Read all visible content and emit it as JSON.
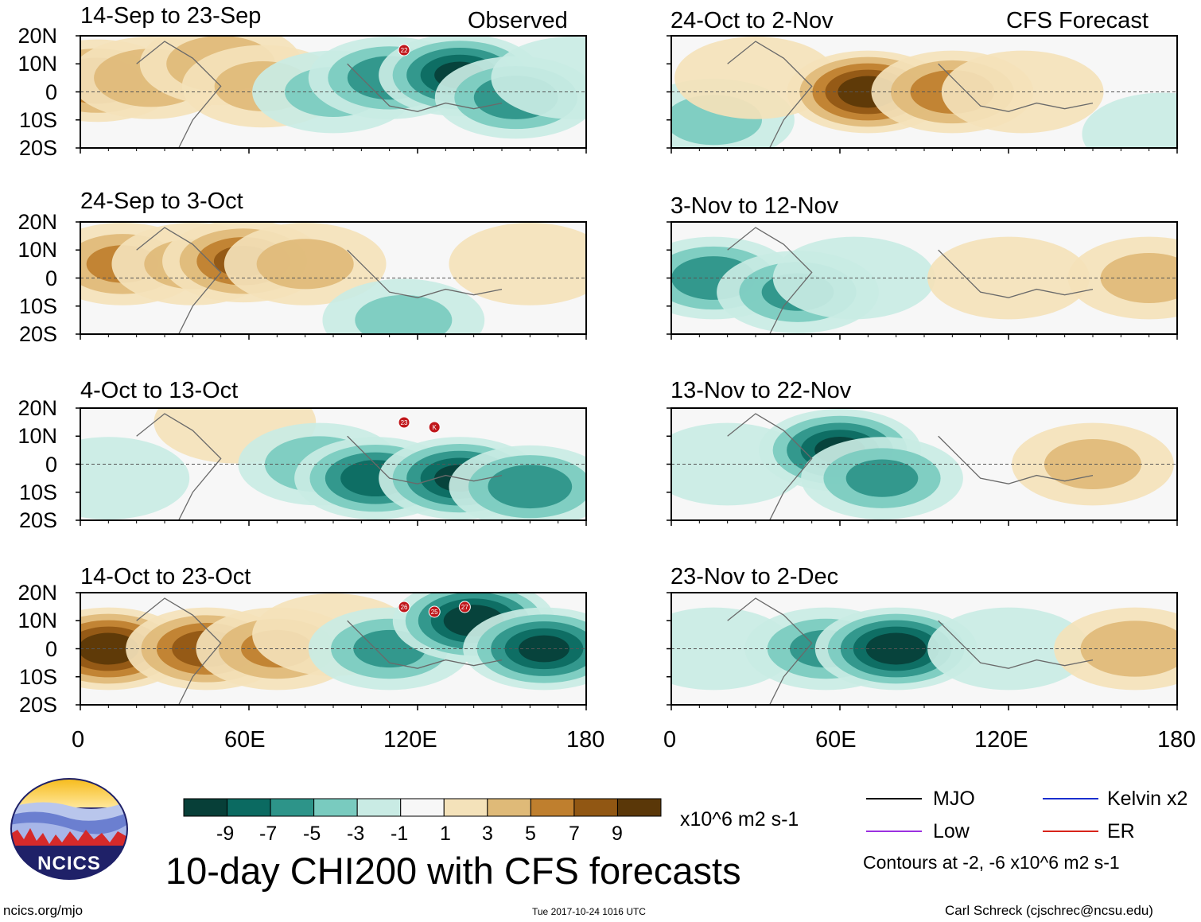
{
  "chart_data": {
    "type": "heatmap",
    "title": "10-day CHI200 with CFS forecasts",
    "units": "x10^6 m2 s-1",
    "x_ticks": [
      "0",
      "60E",
      "120E",
      "180"
    ],
    "y_ticks": [
      "20N",
      "10N",
      "0",
      "10S",
      "20S"
    ],
    "xlim": [
      0,
      180
    ],
    "ylim": [
      -20,
      20
    ],
    "headers": {
      "observed": "Observed",
      "forecast": "CFS Forecast"
    },
    "panels": [
      {
        "period": "14-Sep to 23-Sep",
        "kind": "observed",
        "anomalies": [
          {
            "lon": 6,
            "lat": 4,
            "value": 6.5
          },
          {
            "lon": 25,
            "lat": 5,
            "value": 4.5
          },
          {
            "lon": 50,
            "lat": 10,
            "value": 4
          },
          {
            "lon": 65,
            "lat": 2,
            "value": 3
          },
          {
            "lon": 90,
            "lat": 0,
            "value": -3
          },
          {
            "lon": 110,
            "lat": 5,
            "value": -6
          },
          {
            "lon": 135,
            "lat": 6,
            "value": -9
          },
          {
            "lon": 155,
            "lat": -2,
            "value": -6
          },
          {
            "lon": 175,
            "lat": 5,
            "value": -2
          }
        ],
        "storm_labels": [
          "22"
        ]
      },
      {
        "period": "24-Sep to 3-Oct",
        "kind": "observed",
        "anomalies": [
          {
            "lon": 15,
            "lat": 5,
            "value": 5
          },
          {
            "lon": 40,
            "lat": 5,
            "value": 3
          },
          {
            "lon": 58,
            "lat": 6,
            "value": 7
          },
          {
            "lon": 80,
            "lat": 5,
            "value": 3
          },
          {
            "lon": 115,
            "lat": -15,
            "value": -3
          },
          {
            "lon": 160,
            "lat": 5,
            "value": 2
          }
        ],
        "storm_labels": []
      },
      {
        "period": "4-Oct to 13-Oct",
        "kind": "observed",
        "anomalies": [
          {
            "lon": 10,
            "lat": -5,
            "value": -2
          },
          {
            "lon": 55,
            "lat": 15,
            "value": 2
          },
          {
            "lon": 85,
            "lat": 0,
            "value": -4
          },
          {
            "lon": 105,
            "lat": -5,
            "value": -8
          },
          {
            "lon": 135,
            "lat": -5,
            "value": -9
          },
          {
            "lon": 160,
            "lat": -8,
            "value": -6
          }
        ],
        "storm_labels": [
          "23",
          "K"
        ]
      },
      {
        "period": "14-Oct to 23-Oct",
        "kind": "observed",
        "anomalies": [
          {
            "lon": 10,
            "lat": 0,
            "value": 10
          },
          {
            "lon": 45,
            "lat": 0,
            "value": 8
          },
          {
            "lon": 70,
            "lat": 0,
            "value": 5
          },
          {
            "lon": 90,
            "lat": 5,
            "value": 2
          },
          {
            "lon": 110,
            "lat": 0,
            "value": -5
          },
          {
            "lon": 140,
            "lat": 10,
            "value": -10
          },
          {
            "lon": 165,
            "lat": 0,
            "value": -9
          }
        ],
        "storm_labels": [
          "26",
          "25",
          "27"
        ]
      },
      {
        "period": "24-Oct to 2-Nov",
        "kind": "forecast",
        "anomalies": [
          {
            "lon": 15,
            "lat": -10,
            "value": -3
          },
          {
            "lon": 30,
            "lat": 5,
            "value": 2
          },
          {
            "lon": 70,
            "lat": 0,
            "value": 10
          },
          {
            "lon": 100,
            "lat": 0,
            "value": 6
          },
          {
            "lon": 125,
            "lat": 0,
            "value": 2
          },
          {
            "lon": 175,
            "lat": -15,
            "value": -2
          }
        ],
        "storm_labels": []
      },
      {
        "period": "3-Nov to 12-Nov",
        "kind": "forecast",
        "anomalies": [
          {
            "lon": 15,
            "lat": 0,
            "value": -6
          },
          {
            "lon": 45,
            "lat": -5,
            "value": -5
          },
          {
            "lon": 65,
            "lat": 0,
            "value": -2
          },
          {
            "lon": 120,
            "lat": 0,
            "value": 2
          },
          {
            "lon": 170,
            "lat": 0,
            "value": 3
          }
        ],
        "storm_labels": []
      },
      {
        "period": "13-Nov to 22-Nov",
        "kind": "forecast",
        "anomalies": [
          {
            "lon": 20,
            "lat": 0,
            "value": -2
          },
          {
            "lon": 60,
            "lat": 5,
            "value": -9
          },
          {
            "lon": 75,
            "lat": -5,
            "value": -5
          },
          {
            "lon": 150,
            "lat": 0,
            "value": 3
          }
        ],
        "storm_labels": []
      },
      {
        "period": "23-Nov to 2-Dec",
        "kind": "forecast",
        "anomalies": [
          {
            "lon": 15,
            "lat": 0,
            "value": -1
          },
          {
            "lon": 55,
            "lat": 0,
            "value": -5
          },
          {
            "lon": 80,
            "lat": 0,
            "value": -10
          },
          {
            "lon": 120,
            "lat": 0,
            "value": -2
          },
          {
            "lon": 165,
            "lat": 0,
            "value": 4
          }
        ],
        "storm_labels": []
      }
    ],
    "colorbar": {
      "ticks": [
        "-9",
        "-7",
        "-5",
        "-3",
        "-1",
        "1",
        "3",
        "5",
        "7",
        "9"
      ],
      "colors": [
        "#073f38",
        "#0b6a61",
        "#2d9489",
        "#79cbbf",
        "#c9ebe4",
        "#f7f7f7",
        "#f4e2ba",
        "#dfba78",
        "#bf7f2e",
        "#915713",
        "#5a3708"
      ]
    },
    "legend": [
      {
        "label": "MJO",
        "color": "#000000"
      },
      {
        "label": "Kelvin x2",
        "color": "#1a2fcf"
      },
      {
        "label": "Low",
        "color": "#9b30e0"
      },
      {
        "label": "ER",
        "color": "#d8241a"
      }
    ],
    "contour_note": "Contours at -2, -6 x10^6 m2 s-1"
  },
  "footer": {
    "logo_text": "NCICS",
    "url": "ncics.org/mjo",
    "timestamp": "Tue 2017-10-24 1016 UTC",
    "credit": "Carl Schreck (cjschrec@ncsu.edu)"
  }
}
